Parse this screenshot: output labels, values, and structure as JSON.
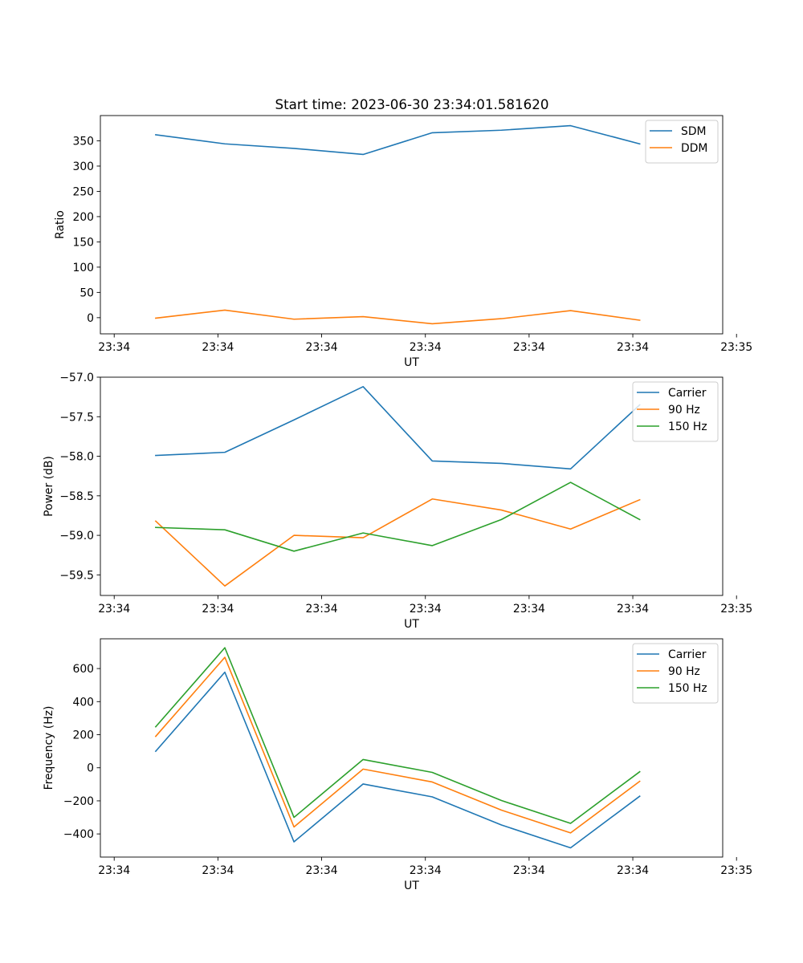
{
  "figure_title": "Start time: 2023-06-30 23:34:01.581620",
  "colors": {
    "blue": "#1f77b4",
    "orange": "#ff7f0e",
    "green": "#2ca02c"
  },
  "chart_data": [
    {
      "type": "line",
      "xlabel": "UT",
      "ylabel": "Ratio",
      "x": [
        1,
        2,
        3,
        4,
        5,
        6,
        7,
        8
      ],
      "xlim": [
        0.2,
        9.2
      ],
      "xticks": [
        0.4,
        1.9,
        3.4,
        4.9,
        6.4,
        7.9,
        9.4
      ],
      "xtick_labels": [
        "23:34",
        "23:34",
        "23:34",
        "23:34",
        "23:34",
        "23:34",
        "23:35"
      ],
      "ylim": [
        -32,
        400
      ],
      "yticks": [
        0,
        50,
        100,
        150,
        200,
        250,
        300,
        350
      ],
      "ytick_labels": [
        "0",
        "50",
        "100",
        "150",
        "200",
        "250",
        "300",
        "350"
      ],
      "legend_position": "top-right",
      "series": [
        {
          "name": "SDM",
          "color": "#1f77b4",
          "values": [
            362,
            344,
            335,
            323,
            366,
            371,
            380,
            344
          ]
        },
        {
          "name": "DDM",
          "color": "#ff7f0e",
          "values": [
            -1,
            15,
            -3,
            2,
            -12,
            -2,
            14,
            -5
          ]
        }
      ]
    },
    {
      "type": "line",
      "xlabel": "UT",
      "ylabel": "Power (dB)",
      "x": [
        1,
        2,
        3,
        4,
        5,
        6,
        7,
        8
      ],
      "xlim": [
        0.2,
        9.2
      ],
      "xticks": [
        0.4,
        1.9,
        3.4,
        4.9,
        6.4,
        7.9,
        9.4
      ],
      "xtick_labels": [
        "23:34",
        "23:34",
        "23:34",
        "23:34",
        "23:34",
        "23:34",
        "23:35"
      ],
      "ylim": [
        -59.76,
        -57.0
      ],
      "yticks": [
        -59.5,
        -59.0,
        -58.5,
        -58.0,
        -57.5,
        -57.0
      ],
      "ytick_labels": [
        "−59.5",
        "−59.0",
        "−58.5",
        "−58.0",
        "−57.5",
        "−57.0"
      ],
      "legend_position": "top-right",
      "series": [
        {
          "name": "Carrier",
          "color": "#1f77b4",
          "values": [
            -57.99,
            -57.95,
            -57.54,
            -57.12,
            -58.06,
            -58.09,
            -58.16,
            -57.35
          ]
        },
        {
          "name": "90 Hz",
          "color": "#ff7f0e",
          "values": [
            -58.82,
            -59.64,
            -59.0,
            -59.03,
            -58.54,
            -58.68,
            -58.92,
            -58.55
          ]
        },
        {
          "name": "150 Hz",
          "color": "#2ca02c",
          "values": [
            -58.9,
            -58.93,
            -59.2,
            -58.97,
            -59.13,
            -58.8,
            -58.33,
            -58.8
          ]
        }
      ]
    },
    {
      "type": "line",
      "xlabel": "UT",
      "ylabel": "Frequency (Hz)",
      "x": [
        1,
        2,
        3,
        4,
        5,
        6,
        7,
        8
      ],
      "xlim": [
        0.2,
        9.2
      ],
      "xticks": [
        0.4,
        1.9,
        3.4,
        4.9,
        6.4,
        7.9,
        9.4
      ],
      "xtick_labels": [
        "23:34",
        "23:34",
        "23:34",
        "23:34",
        "23:34",
        "23:34",
        "23:35"
      ],
      "ylim": [
        -540,
        780
      ],
      "yticks": [
        -400,
        -200,
        0,
        200,
        400,
        600
      ],
      "ytick_labels": [
        "−400",
        "−200",
        "0",
        "200",
        "400",
        "600"
      ],
      "legend_position": "top-right",
      "series": [
        {
          "name": "Carrier",
          "color": "#1f77b4",
          "values": [
            100,
            578,
            -448,
            -98,
            -176,
            -346,
            -484,
            -172
          ]
        },
        {
          "name": "90 Hz",
          "color": "#ff7f0e",
          "values": [
            190,
            668,
            -358,
            -8,
            -86,
            -256,
            -394,
            -82
          ]
        },
        {
          "name": "150 Hz",
          "color": "#2ca02c",
          "values": [
            248,
            726,
            -300,
            50,
            -28,
            -198,
            -336,
            -24
          ]
        }
      ]
    }
  ]
}
